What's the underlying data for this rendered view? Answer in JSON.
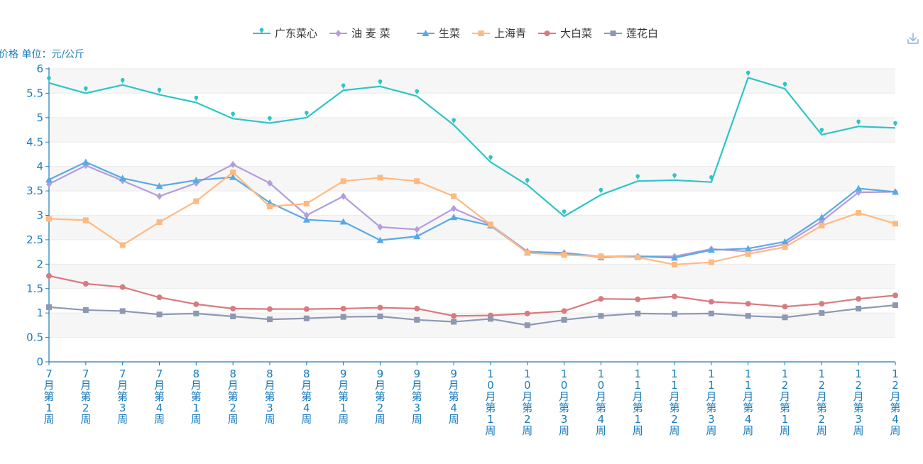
{
  "chart_data": {
    "type": "line",
    "ylabel": "价格 单位：元/公斤",
    "ylim": [
      0,
      6
    ],
    "yticks": [
      "0",
      "0.5",
      "1",
      "1.5",
      "2",
      "2.5",
      "3",
      "3.5",
      "4",
      "4.5",
      "5",
      "5.5",
      "6"
    ],
    "categories": [
      "7月第1周",
      "7月第2周",
      "7月第3周",
      "7月第4周",
      "8月第1周",
      "8月第2周",
      "8月第3周",
      "8月第4周",
      "9月第1周",
      "9月第2周",
      "9月第3周",
      "9月第4周",
      "10月第1周",
      "10月第2周",
      "10月第3周",
      "10月第4周",
      "11月第1周",
      "11月第2周",
      "11月第3周",
      "11月第4周",
      "12月第1周",
      "12月第2周",
      "12月第3周",
      "12月第4周"
    ],
    "grid": "horizontal striped bands",
    "legend_position": "top-center",
    "series": [
      {
        "name": "广东菜心",
        "color": "#2ec4c6",
        "marker": "pin",
        "values": [
          5.71,
          5.5,
          5.67,
          5.47,
          5.31,
          4.98,
          4.89,
          5.0,
          5.56,
          5.64,
          5.44,
          4.85,
          4.09,
          3.62,
          2.98,
          3.42,
          3.7,
          3.72,
          3.68,
          5.82,
          5.59,
          4.65,
          4.82,
          4.79
        ]
      },
      {
        "name": "油 麦 菜",
        "color": "#b39ddb",
        "marker": "diamond",
        "values": [
          3.64,
          4.02,
          3.71,
          3.39,
          3.66,
          4.04,
          3.66,
          3.0,
          3.39,
          2.76,
          2.71,
          3.14,
          2.81,
          2.26,
          2.23,
          2.16,
          2.16,
          2.16,
          2.31,
          2.26,
          2.41,
          2.88,
          3.47,
          3.48
        ]
      },
      {
        "name": "生菜",
        "color": "#5aa9e6",
        "marker": "triangle",
        "values": [
          3.73,
          4.09,
          3.76,
          3.6,
          3.72,
          3.78,
          3.26,
          2.91,
          2.87,
          2.49,
          2.57,
          2.96,
          2.79,
          2.24,
          2.23,
          2.14,
          2.16,
          2.13,
          2.29,
          2.32,
          2.46,
          2.96,
          3.55,
          3.48
        ]
      },
      {
        "name": "上海青",
        "color": "#ffb980",
        "marker": "square",
        "values": [
          2.93,
          2.9,
          2.39,
          2.86,
          3.29,
          3.88,
          3.18,
          3.24,
          3.7,
          3.77,
          3.7,
          3.39,
          2.81,
          2.23,
          2.19,
          2.16,
          2.14,
          1.99,
          2.04,
          2.21,
          2.35,
          2.79,
          3.05,
          2.83
        ]
      },
      {
        "name": "大白菜",
        "color": "#d87a80",
        "marker": "circle",
        "values": [
          1.76,
          1.6,
          1.53,
          1.32,
          1.18,
          1.09,
          1.08,
          1.08,
          1.09,
          1.11,
          1.09,
          0.94,
          0.95,
          0.99,
          1.04,
          1.29,
          1.28,
          1.34,
          1.23,
          1.19,
          1.13,
          1.19,
          1.29,
          1.36
        ]
      },
      {
        "name": "莲花白",
        "color": "#8d98b3",
        "marker": "square",
        "values": [
          1.12,
          1.06,
          1.04,
          0.97,
          0.99,
          0.93,
          0.87,
          0.89,
          0.92,
          0.93,
          0.86,
          0.82,
          0.88,
          0.75,
          0.86,
          0.94,
          0.99,
          0.98,
          0.99,
          0.94,
          0.91,
          1.0,
          1.09,
          1.16
        ]
      }
    ]
  },
  "toolbar": {
    "download_icon": "download-icon"
  }
}
